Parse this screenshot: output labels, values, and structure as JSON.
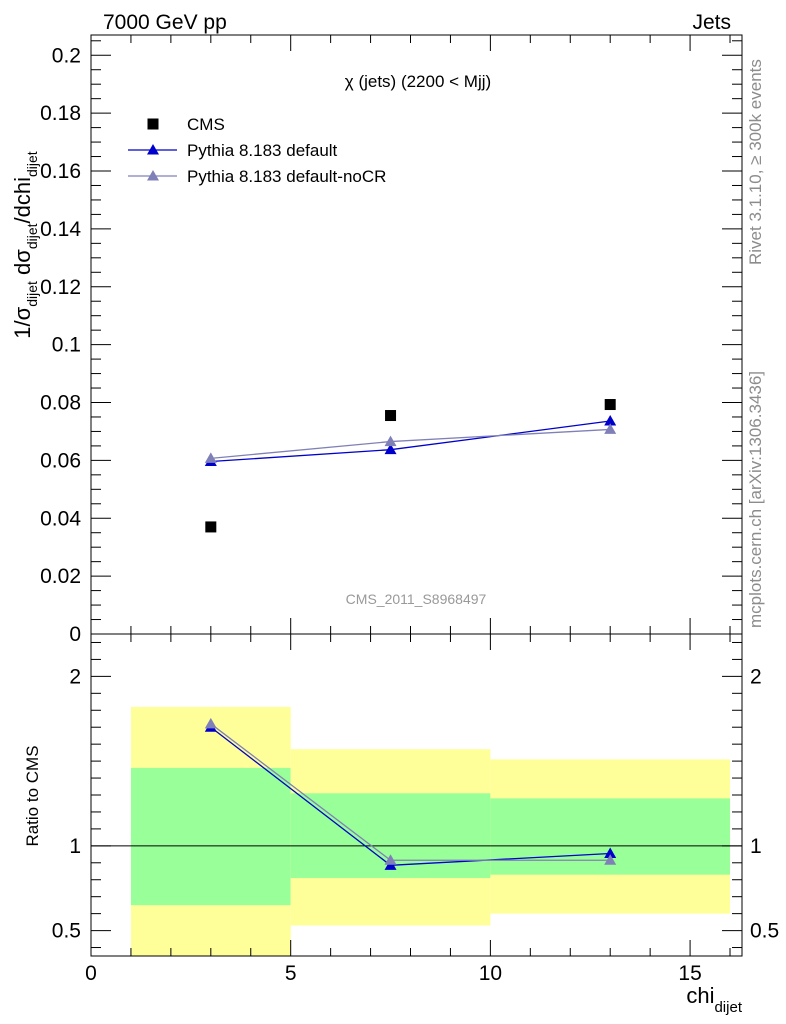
{
  "header": {
    "left": "7000 GeV pp",
    "right": "Jets"
  },
  "side_labels": {
    "rivet": "Rivet 3.1.10, ≥ 300k events",
    "mcplots": "mcplots.cern.ch [arXiv:1306.3436]"
  },
  "chart_data": [
    {
      "type": "scatter",
      "title": "χ (jets) (2200 < Mjj)",
      "watermark": "CMS_2011_S8968497",
      "ylabel_parts": [
        "1/σ",
        "dijet",
        " dσ",
        "dijet",
        "/dchi",
        "dijet"
      ],
      "xlim": [
        0,
        16.3
      ],
      "ylim": [
        0,
        0.207
      ],
      "yticks": [
        0,
        0.02,
        0.04,
        0.06,
        0.08,
        0.1,
        0.12,
        0.14,
        0.16,
        0.18,
        0.2
      ],
      "ytick_labels": [
        "0",
        "0.02",
        "0.04",
        "0.06",
        "0.08",
        "0.1",
        "0.12",
        "0.14",
        "0.16",
        "0.18",
        "0.2"
      ],
      "legend_position": "top-left",
      "series": [
        {
          "name": "CMS",
          "marker": "square",
          "color": "#000000",
          "x": [
            3,
            7.5,
            13
          ],
          "values": [
            0.037,
            0.0755,
            0.0793
          ]
        },
        {
          "name": "Pythia 8.183 default",
          "marker": "triangle",
          "color": "#0000cc",
          "x": [
            3,
            7.5,
            13
          ],
          "values": [
            0.0596,
            0.0637,
            0.0736
          ]
        },
        {
          "name": "Pythia 8.183 default-noCR",
          "marker": "triangle",
          "color": "#8080b8",
          "x": [
            3,
            7.5,
            13
          ],
          "values": [
            0.0607,
            0.0665,
            0.0707
          ]
        }
      ]
    },
    {
      "type": "line",
      "ylabel": "Ratio to CMS",
      "xlabel_main": "chi",
      "xlabel_sub": "dijet",
      "xlim": [
        0,
        16.3
      ],
      "ylim": [
        0.35,
        2.25
      ],
      "xticks": [
        0,
        5,
        10,
        15
      ],
      "xtick_labels": [
        "0",
        "5",
        "10",
        "15"
      ],
      "yticks": [
        0.5,
        1,
        2
      ],
      "ytick_labels": [
        "0.5",
        "1",
        "2"
      ],
      "reference_line": 1,
      "bands": [
        {
          "x0": 1,
          "x1": 5,
          "yellow": [
            0.35,
            1.82
          ],
          "green": [
            0.65,
            1.46
          ]
        },
        {
          "x0": 5,
          "x1": 10,
          "yellow": [
            0.53,
            1.57
          ],
          "green": [
            0.81,
            1.31
          ]
        },
        {
          "x0": 10,
          "x1": 16,
          "yellow": [
            0.6,
            1.51
          ],
          "green": [
            0.83,
            1.28
          ]
        }
      ],
      "band_colors": {
        "yellow": "#ffff99",
        "green": "#99ff99"
      },
      "series": [
        {
          "name": "Pythia 8.183 default",
          "color": "#0000cc",
          "x": [
            3,
            7.5,
            13
          ],
          "values": [
            1.7,
            0.885,
            0.955
          ]
        },
        {
          "name": "Pythia 8.183 default-noCR",
          "color": "#8080b8",
          "x": [
            3,
            7.5,
            13
          ],
          "values": [
            1.72,
            0.915,
            0.915
          ]
        }
      ]
    }
  ]
}
